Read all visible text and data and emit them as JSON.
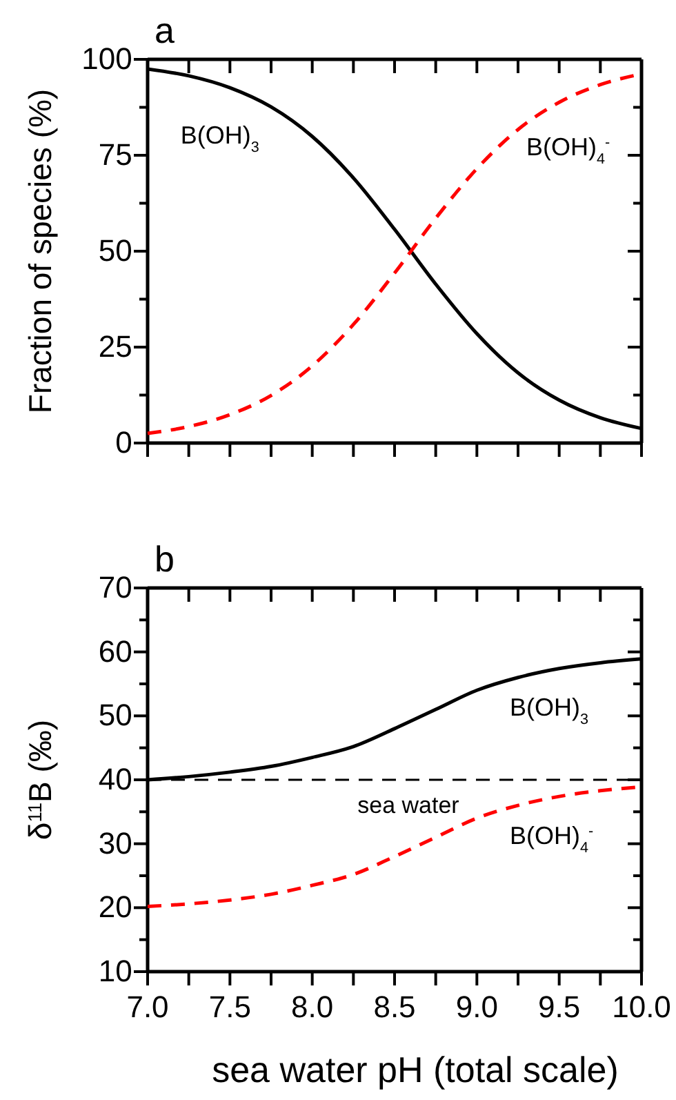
{
  "chart_data": [
    {
      "type": "line",
      "title": "a",
      "ylabel": "Fraction of species (%)",
      "x": [
        7,
        7.25,
        7.5,
        7.75,
        8,
        8.25,
        8.5,
        8.75,
        9,
        9.25,
        9.5,
        9.75,
        10
      ],
      "series": [
        {
          "color": "#000000",
          "line_style": "solid",
          "values": [
            97.5,
            95.7,
            92.6,
            87.6,
            79.9,
            69.1,
            55.7,
            41.4,
            28.5,
            18.3,
            11.2,
            6.6,
            3.8
          ]
        },
        {
          "color": "#ff0000",
          "line_style": "dashed",
          "values": [
            2.5,
            4.3,
            7.4,
            12.4,
            20.1,
            30.9,
            44.3,
            58.6,
            71.5,
            81.7,
            88.8,
            93.4,
            96.2
          ]
        }
      ],
      "annotations": [
        "B(OH)$_{3}$",
        "B(OH)$_{4}$$^{-}$"
      ],
      "xlim": [
        7,
        10
      ],
      "xticks": [
        {
          "value": 7,
          "label": null
        },
        {
          "value": 7.25,
          "label": null
        },
        {
          "value": 7.5,
          "label": null
        },
        {
          "value": 7.75,
          "label": null
        },
        {
          "value": 8,
          "label": null
        },
        {
          "value": 8.25,
          "label": null
        },
        {
          "value": 8.5,
          "label": null
        },
        {
          "value": 8.75,
          "label": null
        },
        {
          "value": 9,
          "label": null
        },
        {
          "value": 9.25,
          "label": null
        },
        {
          "value": 9.5,
          "label": null
        },
        {
          "value": 9.75,
          "label": null
        },
        {
          "value": 10,
          "label": null
        }
      ],
      "ylim": [
        0,
        100
      ],
      "yticks": [
        0,
        {
          "value": 12.5,
          "label": null
        },
        25,
        {
          "value": 37.5,
          "label": null
        },
        50,
        {
          "value": 62.5,
          "label": null
        },
        75,
        {
          "value": 87.5,
          "label": null
        },
        100
      ],
      "tick_labels": "y"
    },
    {
      "type": "line",
      "title": "b",
      "xlabel": "sea water pH (total scale)",
      "ylabel": "δ$^{11}$B (‰)",
      "x": [
        7,
        7.25,
        7.5,
        7.75,
        8,
        8.25,
        8.5,
        8.75,
        9,
        9.25,
        9.5,
        9.75,
        10
      ],
      "series": [
        {
          "color": "#000000",
          "line_style": "solid",
          "values": [
            40,
            40.5,
            41.2,
            42.1,
            43.5,
            45.2,
            48,
            51,
            54,
            56,
            57.4,
            58.3,
            58.9
          ]
        },
        {
          "color": "#ff0000",
          "line_style": "dashed",
          "values": [
            20.2,
            20.6,
            21.2,
            22.1,
            23.5,
            25.2,
            28,
            31,
            34,
            36,
            37.4,
            38.3,
            38.9
          ]
        }
      ],
      "annotations": [
        "B(OH)$_{3}$",
        "B(OH)$_{4}$$^{-}$"
      ],
      "xlim": [
        7,
        10
      ],
      "xticks": [
        {
          "value": 7,
          "label": "7.0"
        },
        {
          "value": 7.25,
          "label": null
        },
        {
          "value": 7.5,
          "label": "7.5"
        },
        {
          "value": 7.75,
          "label": null
        },
        {
          "value": 8,
          "label": "8.0"
        },
        {
          "value": 8.25,
          "label": null
        },
        {
          "value": 8.5,
          "label": "8.5"
        },
        {
          "value": 8.75,
          "label": null
        },
        {
          "value": 9,
          "label": "9.0"
        },
        {
          "value": 9.25,
          "label": null
        },
        {
          "value": 9.5,
          "label": "9.5"
        },
        {
          "value": 9.75,
          "label": null
        },
        {
          "value": 10,
          "label": "10.0"
        }
      ],
      "ylim": [
        10,
        70
      ],
      "yticks": [
        10,
        {
          "value": 15,
          "label": null
        },
        20,
        {
          "value": 25,
          "label": null
        },
        30,
        {
          "value": 35,
          "label": null
        },
        40,
        {
          "value": 45,
          "label": null
        },
        50,
        {
          "value": 55,
          "label": null
        },
        60,
        {
          "value": 65,
          "label": null
        },
        70
      ],
      "ref_lines": [
        {
          "axis": "y",
          "value": 40,
          "label": "sea water",
          "color": "#000000",
          "line_style": "dashed"
        }
      ]
    }
  ]
}
